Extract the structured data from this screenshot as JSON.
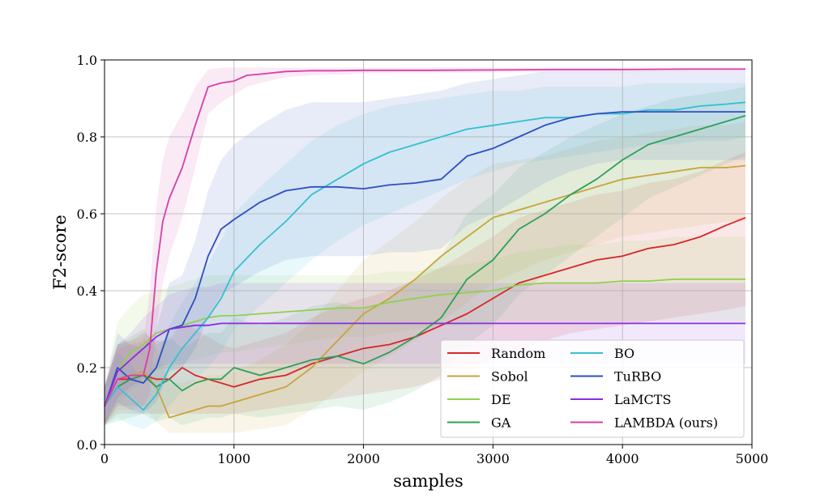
{
  "chart_data": {
    "type": "line",
    "title": "",
    "xlabel": "samples",
    "ylabel": "F2-score",
    "xlim": [
      0,
      5000
    ],
    "ylim": [
      0.0,
      1.0
    ],
    "xticks": [
      "0",
      "1000",
      "2000",
      "3000",
      "4000",
      "5000"
    ],
    "yticks": [
      "0.0",
      "0.2",
      "0.4",
      "0.6",
      "0.8",
      "1.0"
    ],
    "grid": true,
    "legend_position": "lower-right",
    "series": [
      {
        "name": "Random",
        "color": "#d62728",
        "x": [
          0,
          100,
          200,
          300,
          400,
          500,
          600,
          700,
          800,
          900,
          1000,
          1200,
          1400,
          1600,
          1800,
          2000,
          2200,
          2400,
          2600,
          2800,
          3000,
          3200,
          3400,
          3600,
          3800,
          4000,
          4200,
          4400,
          4600,
          4800,
          4950
        ],
        "values": [
          0.1,
          0.17,
          0.17,
          0.18,
          0.17,
          0.17,
          0.2,
          0.18,
          0.17,
          0.16,
          0.15,
          0.17,
          0.18,
          0.21,
          0.23,
          0.25,
          0.26,
          0.28,
          0.31,
          0.34,
          0.38,
          0.42,
          0.44,
          0.46,
          0.48,
          0.49,
          0.51,
          0.52,
          0.54,
          0.57,
          0.59
        ],
        "lower": [
          0.05,
          0.08,
          0.08,
          0.08,
          0.08,
          0.08,
          0.08,
          0.08,
          0.08,
          0.08,
          0.08,
          0.09,
          0.1,
          0.11,
          0.12,
          0.13,
          0.14,
          0.15,
          0.17,
          0.19,
          0.22,
          0.25,
          0.27,
          0.29,
          0.3,
          0.31,
          0.32,
          0.33,
          0.34,
          0.35,
          0.36
        ],
        "upper": [
          0.15,
          0.26,
          0.27,
          0.29,
          0.27,
          0.27,
          0.32,
          0.3,
          0.28,
          0.26,
          0.25,
          0.27,
          0.29,
          0.33,
          0.36,
          0.38,
          0.4,
          0.43,
          0.46,
          0.5,
          0.54,
          0.59,
          0.61,
          0.63,
          0.65,
          0.66,
          0.68,
          0.69,
          0.71,
          0.74,
          0.76
        ]
      },
      {
        "name": "Sobol",
        "color": "#c9a43a",
        "x": [
          0,
          100,
          200,
          300,
          400,
          500,
          600,
          700,
          800,
          900,
          1000,
          1200,
          1400,
          1600,
          1800,
          2000,
          2200,
          2400,
          2600,
          2800,
          3000,
          3200,
          3400,
          3600,
          3800,
          4000,
          4200,
          4400,
          4600,
          4800,
          4950
        ],
        "values": [
          0.1,
          0.17,
          0.18,
          0.19,
          0.15,
          0.07,
          0.08,
          0.09,
          0.1,
          0.1,
          0.11,
          0.13,
          0.15,
          0.2,
          0.27,
          0.34,
          0.38,
          0.43,
          0.49,
          0.54,
          0.59,
          0.61,
          0.63,
          0.65,
          0.67,
          0.69,
          0.7,
          0.71,
          0.72,
          0.72,
          0.725
        ],
        "lower": [
          0.05,
          0.09,
          0.09,
          0.1,
          0.06,
          0.03,
          0.03,
          0.03,
          0.03,
          0.03,
          0.03,
          0.04,
          0.05,
          0.09,
          0.14,
          0.19,
          0.23,
          0.27,
          0.32,
          0.37,
          0.42,
          0.45,
          0.48,
          0.5,
          0.52,
          0.54,
          0.55,
          0.56,
          0.57,
          0.58,
          0.58
        ],
        "upper": [
          0.15,
          0.26,
          0.27,
          0.28,
          0.25,
          0.16,
          0.16,
          0.17,
          0.18,
          0.18,
          0.19,
          0.22,
          0.26,
          0.32,
          0.4,
          0.48,
          0.53,
          0.58,
          0.64,
          0.69,
          0.73,
          0.74,
          0.75,
          0.77,
          0.79,
          0.8,
          0.81,
          0.82,
          0.83,
          0.83,
          0.84
        ]
      },
      {
        "name": "DE",
        "color": "#8fd14f",
        "x": [
          0,
          100,
          200,
          300,
          400,
          500,
          600,
          700,
          800,
          900,
          1000,
          1200,
          1400,
          1600,
          1800,
          2000,
          2200,
          2400,
          2600,
          2800,
          3000,
          3200,
          3400,
          3600,
          3800,
          4000,
          4200,
          4400,
          4600,
          4800,
          4950
        ],
        "values": [
          0.1,
          0.19,
          0.24,
          0.26,
          0.29,
          0.3,
          0.31,
          0.32,
          0.33,
          0.335,
          0.335,
          0.34,
          0.345,
          0.35,
          0.355,
          0.355,
          0.37,
          0.38,
          0.39,
          0.395,
          0.4,
          0.415,
          0.42,
          0.42,
          0.42,
          0.425,
          0.425,
          0.43,
          0.43,
          0.43,
          0.43
        ],
        "lower": [
          0.05,
          0.1,
          0.14,
          0.16,
          0.19,
          0.2,
          0.21,
          0.22,
          0.23,
          0.24,
          0.24,
          0.25,
          0.26,
          0.27,
          0.28,
          0.28,
          0.29,
          0.3,
          0.31,
          0.31,
          0.32,
          0.32,
          0.32,
          0.32,
          0.32,
          0.32,
          0.32,
          0.32,
          0.32,
          0.32,
          0.32
        ],
        "upper": [
          0.15,
          0.32,
          0.36,
          0.39,
          0.4,
          0.41,
          0.42,
          0.43,
          0.44,
          0.44,
          0.44,
          0.44,
          0.44,
          0.44,
          0.44,
          0.44,
          0.45,
          0.45,
          0.46,
          0.47,
          0.48,
          0.5,
          0.51,
          0.52,
          0.52,
          0.53,
          0.53,
          0.54,
          0.54,
          0.54,
          0.54
        ]
      },
      {
        "name": "GA",
        "color": "#2ca05a",
        "x": [
          0,
          100,
          200,
          300,
          400,
          500,
          600,
          700,
          800,
          900,
          1000,
          1200,
          1400,
          1600,
          1800,
          2000,
          2200,
          2400,
          2600,
          2800,
          3000,
          3200,
          3400,
          3600,
          3800,
          4000,
          4200,
          4400,
          4600,
          4800,
          4950
        ],
        "values": [
          0.1,
          0.15,
          0.17,
          0.18,
          0.15,
          0.17,
          0.14,
          0.16,
          0.17,
          0.17,
          0.2,
          0.18,
          0.2,
          0.22,
          0.23,
          0.21,
          0.24,
          0.28,
          0.33,
          0.43,
          0.48,
          0.56,
          0.6,
          0.65,
          0.69,
          0.74,
          0.78,
          0.8,
          0.82,
          0.84,
          0.855
        ],
        "lower": [
          0.05,
          0.06,
          0.07,
          0.08,
          0.06,
          0.07,
          0.05,
          0.06,
          0.07,
          0.07,
          0.08,
          0.07,
          0.08,
          0.09,
          0.1,
          0.09,
          0.11,
          0.14,
          0.18,
          0.26,
          0.31,
          0.39,
          0.44,
          0.49,
          0.54,
          0.59,
          0.64,
          0.67,
          0.7,
          0.73,
          0.75
        ],
        "upper": [
          0.15,
          0.26,
          0.28,
          0.3,
          0.26,
          0.28,
          0.25,
          0.27,
          0.29,
          0.29,
          0.33,
          0.31,
          0.33,
          0.36,
          0.37,
          0.35,
          0.38,
          0.43,
          0.49,
          0.6,
          0.65,
          0.72,
          0.76,
          0.8,
          0.83,
          0.86,
          0.88,
          0.9,
          0.91,
          0.92,
          0.93
        ]
      },
      {
        "name": "BO",
        "color": "#35c0cf",
        "x": [
          0,
          100,
          200,
          300,
          400,
          500,
          600,
          700,
          800,
          900,
          1000,
          1200,
          1400,
          1600,
          1800,
          2000,
          2200,
          2400,
          2600,
          2800,
          3000,
          3200,
          3400,
          3600,
          3800,
          4000,
          4200,
          4400,
          4600,
          4800,
          4950
        ],
        "values": [
          0.1,
          0.15,
          0.12,
          0.09,
          0.13,
          0.2,
          0.25,
          0.29,
          0.33,
          0.38,
          0.45,
          0.52,
          0.58,
          0.65,
          0.69,
          0.73,
          0.76,
          0.78,
          0.8,
          0.82,
          0.83,
          0.84,
          0.85,
          0.85,
          0.86,
          0.86,
          0.87,
          0.87,
          0.88,
          0.885,
          0.89
        ],
        "lower": [
          0.05,
          0.07,
          0.05,
          0.04,
          0.06,
          0.1,
          0.14,
          0.17,
          0.2,
          0.24,
          0.3,
          0.36,
          0.42,
          0.48,
          0.53,
          0.57,
          0.6,
          0.63,
          0.66,
          0.69,
          0.71,
          0.73,
          0.74,
          0.75,
          0.76,
          0.77,
          0.78,
          0.78,
          0.79,
          0.79,
          0.8
        ],
        "upper": [
          0.15,
          0.24,
          0.21,
          0.16,
          0.22,
          0.31,
          0.37,
          0.42,
          0.47,
          0.53,
          0.6,
          0.67,
          0.73,
          0.79,
          0.83,
          0.86,
          0.88,
          0.89,
          0.9,
          0.91,
          0.92,
          0.92,
          0.93,
          0.93,
          0.93,
          0.93,
          0.94,
          0.94,
          0.94,
          0.94,
          0.94
        ]
      },
      {
        "name": "TuRBO",
        "color": "#2d4fc0",
        "x": [
          0,
          100,
          200,
          300,
          400,
          500,
          600,
          700,
          800,
          900,
          1000,
          1200,
          1400,
          1600,
          1800,
          2000,
          2200,
          2400,
          2600,
          2800,
          3000,
          3200,
          3400,
          3600,
          3800,
          4000,
          4200,
          4400,
          4600,
          4800,
          4950
        ],
        "values": [
          0.1,
          0.2,
          0.17,
          0.16,
          0.2,
          0.3,
          0.31,
          0.38,
          0.49,
          0.56,
          0.585,
          0.63,
          0.66,
          0.67,
          0.67,
          0.665,
          0.675,
          0.68,
          0.69,
          0.75,
          0.77,
          0.8,
          0.83,
          0.85,
          0.86,
          0.865,
          0.865,
          0.865,
          0.865,
          0.865,
          0.865
        ],
        "lower": [
          0.05,
          0.11,
          0.09,
          0.08,
          0.11,
          0.19,
          0.2,
          0.25,
          0.33,
          0.39,
          0.41,
          0.45,
          0.48,
          0.49,
          0.49,
          0.49,
          0.5,
          0.5,
          0.51,
          0.57,
          0.6,
          0.64,
          0.68,
          0.71,
          0.73,
          0.74,
          0.74,
          0.74,
          0.74,
          0.74,
          0.74
        ],
        "upper": [
          0.15,
          0.29,
          0.26,
          0.25,
          0.3,
          0.42,
          0.44,
          0.53,
          0.66,
          0.74,
          0.78,
          0.83,
          0.87,
          0.89,
          0.89,
          0.89,
          0.9,
          0.91,
          0.92,
          0.94,
          0.95,
          0.96,
          0.97,
          0.97,
          0.97,
          0.97,
          0.97,
          0.97,
          0.97,
          0.97,
          0.97
        ]
      },
      {
        "name": "LaMCTS",
        "color": "#8b2be2",
        "x": [
          0,
          100,
          200,
          300,
          400,
          500,
          600,
          700,
          800,
          900,
          1000,
          1200,
          1400,
          1600,
          1800,
          2000,
          2200,
          2400,
          2600,
          2800,
          3000,
          3200,
          3400,
          3600,
          3800,
          4000,
          4200,
          4400,
          4600,
          4800,
          4950
        ],
        "values": [
          0.1,
          0.19,
          0.22,
          0.25,
          0.28,
          0.3,
          0.305,
          0.31,
          0.31,
          0.315,
          0.315,
          0.315,
          0.315,
          0.315,
          0.315,
          0.315,
          0.315,
          0.315,
          0.315,
          0.315,
          0.315,
          0.315,
          0.315,
          0.315,
          0.315,
          0.315,
          0.315,
          0.315,
          0.315,
          0.315,
          0.315
        ],
        "lower": [
          0.05,
          0.12,
          0.15,
          0.17,
          0.2,
          0.21,
          0.21,
          0.21,
          0.21,
          0.21,
          0.21,
          0.21,
          0.21,
          0.21,
          0.21,
          0.21,
          0.21,
          0.21,
          0.21,
          0.21,
          0.21,
          0.21,
          0.21,
          0.21,
          0.21,
          0.21,
          0.21,
          0.21,
          0.21,
          0.21,
          0.21
        ],
        "upper": [
          0.15,
          0.26,
          0.29,
          0.33,
          0.36,
          0.39,
          0.4,
          0.41,
          0.41,
          0.42,
          0.42,
          0.42,
          0.42,
          0.42,
          0.42,
          0.42,
          0.42,
          0.42,
          0.42,
          0.42,
          0.42,
          0.42,
          0.42,
          0.42,
          0.42,
          0.42,
          0.42,
          0.42,
          0.42,
          0.42,
          0.42
        ]
      },
      {
        "name": "LAMBDA (ours)",
        "color": "#d63fa6",
        "x": [
          0,
          100,
          200,
          300,
          350,
          400,
          450,
          500,
          600,
          700,
          800,
          900,
          1000,
          1100,
          1200,
          1400,
          1600,
          1800,
          2000,
          2500,
          3000,
          3500,
          4000,
          4500,
          4950
        ],
        "values": [
          0.1,
          0.17,
          0.18,
          0.18,
          0.25,
          0.45,
          0.58,
          0.64,
          0.72,
          0.83,
          0.93,
          0.94,
          0.945,
          0.96,
          0.963,
          0.97,
          0.972,
          0.972,
          0.973,
          0.973,
          0.974,
          0.975,
          0.975,
          0.976,
          0.976
        ],
        "lower": [
          0.05,
          0.1,
          0.1,
          0.1,
          0.13,
          0.3,
          0.42,
          0.49,
          0.59,
          0.72,
          0.86,
          0.89,
          0.91,
          0.93,
          0.94,
          0.955,
          0.96,
          0.962,
          0.965,
          0.966,
          0.967,
          0.968,
          0.968,
          0.969,
          0.969
        ],
        "upper": [
          0.15,
          0.25,
          0.26,
          0.27,
          0.4,
          0.62,
          0.74,
          0.8,
          0.86,
          0.93,
          0.975,
          0.98,
          0.98,
          0.98,
          0.98,
          0.98,
          0.98,
          0.98,
          0.98,
          0.98,
          0.98,
          0.98,
          0.98,
          0.98,
          0.98
        ]
      }
    ],
    "legend_columns": [
      [
        "Random",
        "Sobol",
        "DE",
        "GA"
      ],
      [
        "BO",
        "TuRBO",
        "LaMCTS",
        "LAMBDA (ours)"
      ]
    ]
  }
}
